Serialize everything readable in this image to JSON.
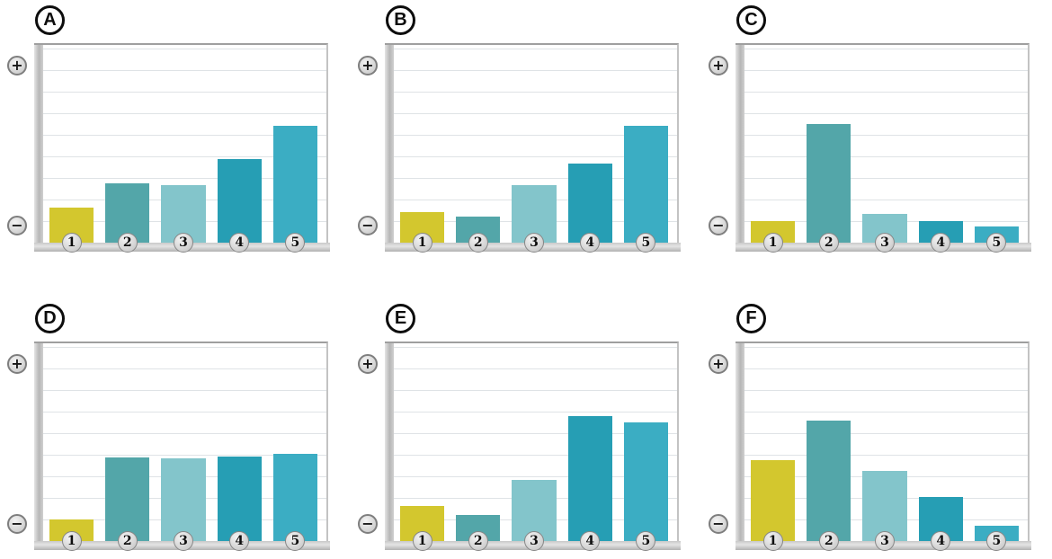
{
  "axis": {
    "positive_symbol": "+",
    "negative_symbol": "−"
  },
  "bar_colors": [
    "#d3c72e",
    "#53a6a9",
    "#83c5cb",
    "#269eb4",
    "#3badc3"
  ],
  "chart_data": [
    {
      "type": "bar",
      "label": "A",
      "categories": [
        "1",
        "2",
        "3",
        "4",
        "5"
      ],
      "values": [
        1.6,
        2.7,
        2.6,
        3.8,
        5.3
      ],
      "title": "",
      "xlabel": "",
      "ylabel": "",
      "y_top_label": "+",
      "y_bottom_label": "−",
      "ylim": [
        0,
        9
      ],
      "grid": true,
      "tick_labels_visible": false
    },
    {
      "type": "bar",
      "label": "B",
      "categories": [
        "1",
        "2",
        "3",
        "4",
        "5"
      ],
      "values": [
        1.4,
        1.2,
        2.6,
        3.6,
        5.3
      ],
      "title": "",
      "xlabel": "",
      "ylabel": "",
      "y_top_label": "+",
      "y_bottom_label": "−",
      "ylim": [
        0,
        9
      ],
      "grid": true,
      "tick_labels_visible": false
    },
    {
      "type": "bar",
      "label": "C",
      "categories": [
        "1",
        "2",
        "3",
        "4",
        "5"
      ],
      "values": [
        1.0,
        5.4,
        1.3,
        1.0,
        0.75
      ],
      "title": "",
      "xlabel": "",
      "ylabel": "",
      "y_top_label": "+",
      "y_bottom_label": "−",
      "ylim": [
        0,
        9
      ],
      "grid": true,
      "tick_labels_visible": false
    },
    {
      "type": "bar",
      "label": "D",
      "categories": [
        "1",
        "2",
        "3",
        "4",
        "5"
      ],
      "values": [
        1.0,
        3.8,
        3.75,
        3.85,
        3.95
      ],
      "title": "",
      "xlabel": "",
      "ylabel": "",
      "y_top_label": "+",
      "y_bottom_label": "−",
      "ylim": [
        0,
        9
      ],
      "grid": true,
      "tick_labels_visible": false
    },
    {
      "type": "bar",
      "label": "E",
      "categories": [
        "1",
        "2",
        "3",
        "4",
        "5"
      ],
      "values": [
        1.6,
        1.2,
        2.8,
        5.7,
        5.4
      ],
      "title": "",
      "xlabel": "",
      "ylabel": "",
      "y_top_label": "+",
      "y_bottom_label": "−",
      "ylim": [
        0,
        9
      ],
      "grid": true,
      "tick_labels_visible": false
    },
    {
      "type": "bar",
      "label": "F",
      "categories": [
        "1",
        "2",
        "3",
        "4",
        "5"
      ],
      "values": [
        3.7,
        5.5,
        3.2,
        2.0,
        0.7
      ],
      "title": "",
      "xlabel": "",
      "ylabel": "",
      "y_top_label": "+",
      "y_bottom_label": "−",
      "ylim": [
        0,
        9
      ],
      "grid": true,
      "tick_labels_visible": false
    }
  ]
}
